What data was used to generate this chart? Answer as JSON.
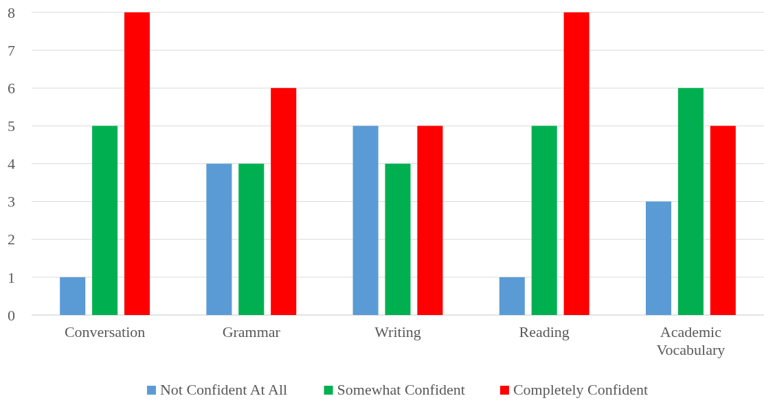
{
  "chart_data": {
    "type": "bar",
    "categories": [
      "Conversation",
      "Grammar",
      "Writing",
      "Reading",
      "Academic Vocabulary"
    ],
    "series": [
      {
        "name": "Not Confident At All",
        "color": "#5b9bd5",
        "values": [
          1,
          4,
          5,
          1,
          3
        ]
      },
      {
        "name": "Somewhat Confident",
        "color": "#00b050",
        "values": [
          5,
          4,
          4,
          5,
          6
        ]
      },
      {
        "name": "Completely Confident",
        "color": "#ff0000",
        "values": [
          8,
          6,
          5,
          8,
          5
        ]
      }
    ],
    "ylim": [
      0,
      8
    ],
    "yticks": [
      0,
      1,
      2,
      3,
      4,
      5,
      6,
      7,
      8
    ],
    "grid": "y",
    "legend": "bottom"
  }
}
